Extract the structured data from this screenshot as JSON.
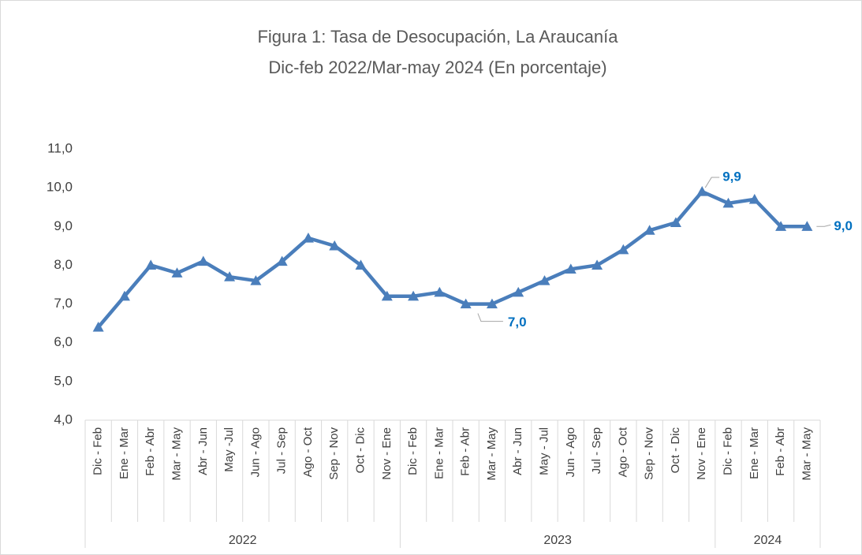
{
  "chart_data": {
    "type": "line",
    "title": "Figura 1: Tasa de Desocupación, La Araucanía",
    "subtitle": "Dic-feb 2022/Mar-may 2024 (En porcentaje)",
    "category_groups": [
      {
        "name": "2022",
        "categories": [
          "Dic - Feb",
          "Ene - Mar",
          "Feb - Abr",
          "Mar - May",
          "Abr - Jun",
          "May -Jul",
          "Jun - Ago",
          "Jul - Sep",
          "Ago - Oct",
          "Sep - Nov",
          "Oct - Dic",
          "Nov - Ene"
        ]
      },
      {
        "name": "2023",
        "categories": [
          "Dic - Feb",
          "Ene - Mar",
          "Feb - Abr",
          "Mar - May",
          "Abr - Jun",
          "May - Jul",
          "Jun - Ago",
          "Jul - Sep",
          "Ago - Oct",
          "Sep - Nov",
          "Oct - Dic",
          "Nov - Ene"
        ]
      },
      {
        "name": "2024",
        "categories": [
          "Dic - Feb",
          "Ene - Mar",
          "Feb - Abr",
          "Mar - May"
        ]
      }
    ],
    "values": [
      6.4,
      7.2,
      8.0,
      7.8,
      8.1,
      7.7,
      7.6,
      8.1,
      8.7,
      8.5,
      8.0,
      7.2,
      7.2,
      7.3,
      7.0,
      7.0,
      7.3,
      7.6,
      7.9,
      8.0,
      8.4,
      8.9,
      9.1,
      9.9,
      9.6,
      9.7,
      9.0,
      9.0
    ],
    "value_labels": [
      null,
      null,
      null,
      null,
      null,
      null,
      null,
      null,
      null,
      null,
      null,
      null,
      null,
      null,
      null,
      "7,0",
      null,
      null,
      null,
      null,
      null,
      null,
      null,
      "9,9",
      null,
      null,
      null,
      "9,0"
    ],
    "color": "#4a7ebb",
    "label_color": "#0070c0",
    "ylim": [
      4,
      11
    ],
    "yticks": [
      {
        "value": 4,
        "label": "4,0"
      },
      {
        "value": 5,
        "label": "5,0"
      },
      {
        "value": 6,
        "label": "6,0"
      },
      {
        "value": 7,
        "label": "7,0"
      },
      {
        "value": 8,
        "label": "8,0"
      },
      {
        "value": 9,
        "label": "9,0"
      },
      {
        "value": 10,
        "label": "10,0"
      },
      {
        "value": 11,
        "label": "11,0"
      }
    ],
    "grid": false
  }
}
